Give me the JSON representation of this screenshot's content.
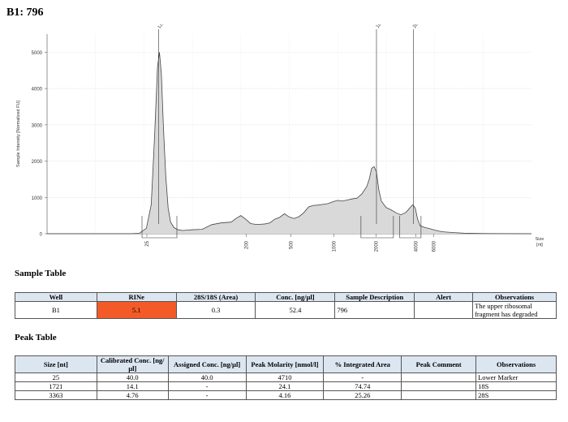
{
  "page": {
    "title": "B1: 796"
  },
  "chart_data": {
    "type": "line",
    "ylabel": "Sample Intensity [Normalized FU]",
    "xlabel": "Size\n[nt]",
    "xlabel_lines": [
      "Size",
      "[nt]"
    ],
    "ylim": [
      0,
      5500
    ],
    "yticks": [
      0,
      1000,
      2000,
      3000,
      4000,
      5000
    ],
    "xticks": [
      {
        "label": "25",
        "pos": 0.206
      },
      {
        "label": "200",
        "pos": 0.411
      },
      {
        "label": "500",
        "pos": 0.503
      },
      {
        "label": "1000",
        "pos": 0.592
      },
      {
        "label": "2000",
        "pos": 0.679
      },
      {
        "label": "4000",
        "pos": 0.761
      },
      {
        "label": "6000",
        "pos": 0.798
      }
    ],
    "peak_markers": [
      {
        "label": "Lower",
        "pos": 0.23
      },
      {
        "label": "18S",
        "pos": 0.68
      },
      {
        "label": "28S",
        "pos": 0.756
      }
    ],
    "grid": true,
    "series": [
      {
        "x": [
          0.0,
          0.1,
          0.17,
          0.19,
          0.205,
          0.215,
          0.222,
          0.228,
          0.232,
          0.236,
          0.24,
          0.245,
          0.25,
          0.255,
          0.262,
          0.27,
          0.28,
          0.29,
          0.3,
          0.32,
          0.34,
          0.36,
          0.38,
          0.39,
          0.4,
          0.41,
          0.42,
          0.43,
          0.44,
          0.45,
          0.46,
          0.47,
          0.48,
          0.49,
          0.5,
          0.51,
          0.52,
          0.53,
          0.54,
          0.55,
          0.56,
          0.57,
          0.58,
          0.59,
          0.6,
          0.61,
          0.62,
          0.63,
          0.64,
          0.65,
          0.66,
          0.665,
          0.67,
          0.675,
          0.68,
          0.685,
          0.69,
          0.7,
          0.71,
          0.72,
          0.73,
          0.74,
          0.745,
          0.75,
          0.755,
          0.76,
          0.765,
          0.77,
          0.78,
          0.79,
          0.8,
          0.81,
          0.82,
          0.84,
          0.86,
          0.9,
          0.95,
          1.0
        ],
        "y": [
          0,
          0,
          0,
          10,
          150,
          800,
          2700,
          4600,
          5000,
          4400,
          3000,
          1600,
          700,
          320,
          170,
          110,
          90,
          100,
          110,
          120,
          250,
          300,
          320,
          420,
          500,
          400,
          280,
          260,
          260,
          270,
          300,
          400,
          450,
          550,
          460,
          420,
          470,
          580,
          740,
          780,
          790,
          810,
          830,
          880,
          920,
          900,
          930,
          960,
          980,
          1100,
          1300,
          1500,
          1800,
          1850,
          1700,
          1200,
          900,
          720,
          660,
          580,
          520,
          580,
          650,
          730,
          800,
          710,
          400,
          220,
          170,
          140,
          100,
          70,
          50,
          30,
          15,
          6,
          2,
          0
        ]
      }
    ],
    "regions": [
      {
        "from": 0.196,
        "to": 0.268
      },
      {
        "from": 0.648,
        "to": 0.715
      },
      {
        "from": 0.728,
        "to": 0.772
      }
    ]
  },
  "sample_table": {
    "heading": "Sample Table",
    "columns": [
      "Well",
      "RINe",
      "28S/18S (Area)",
      "Conc. [ng/µl]",
      "Sample Description",
      "Alert",
      "Observations"
    ],
    "rows": [
      [
        "B1",
        "5.1",
        "0.3",
        "52.4",
        "796",
        "",
        "The upper ribosomal fragment has degraded"
      ]
    ],
    "rine_color": "#f35a27"
  },
  "peak_table": {
    "heading": "Peak Table",
    "columns": [
      "Size [nt]",
      "Calibrated Conc. [ng/µl]",
      "Assigned Conc. [ng/µl]",
      "Peak Molarity [nmol/l]",
      "% Integrated Area",
      "Peak Comment",
      "Observations"
    ],
    "rows": [
      [
        "25",
        "40.0",
        "40.0",
        "4710",
        "-",
        "",
        "Lower Marker"
      ],
      [
        "1721",
        "14.1",
        "-",
        "24.1",
        "74.74",
        "",
        "18S"
      ],
      [
        "3363",
        "4.76",
        "-",
        "4.16",
        "25.26",
        "",
        "28S"
      ]
    ]
  }
}
